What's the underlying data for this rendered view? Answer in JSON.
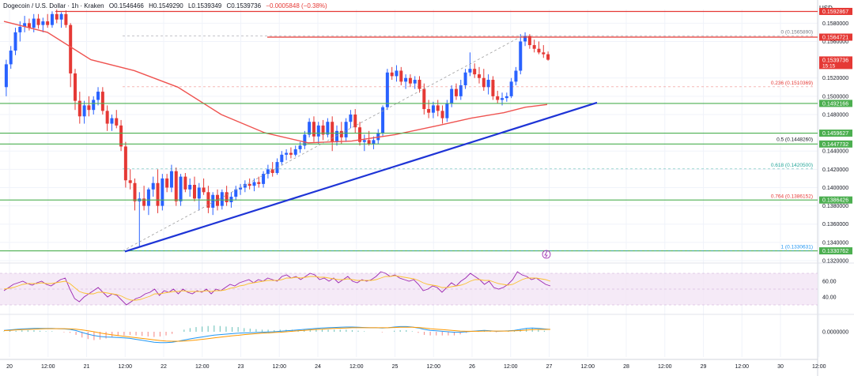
{
  "header": {
    "symbol": "Dogecoin / U.S. Dollar · 1h · Kraken",
    "open": "O0.1546466",
    "high": "H0.1549290",
    "low": "L0.1539349",
    "close": "C0.1539736",
    "change": "−0.0005848 (−0.38%)"
  },
  "currency_label": "USD",
  "colors": {
    "up": "#2962ff",
    "down": "#e53935",
    "ma": "#ef5350",
    "trendline": "#1e34d6",
    "support": "#4caf50",
    "resistance": "#e53935",
    "rsi_line": "#9c27b0",
    "rsi_ma": "#fbc02d",
    "rsi_band": "#f3e5f5",
    "macd": "#2196f3",
    "signal": "#ff9800",
    "fib_text": "#e53935"
  },
  "chart_data": {
    "type": "candlestick",
    "price_axis": {
      "min": 0.132,
      "max": 0.1595,
      "ticks": [
        "0.1580000",
        "0.1560000",
        "0.1520000",
        "0.1500000",
        "0.1480000",
        "0.1440000",
        "0.1420000",
        "0.1400000",
        "0.1380000",
        "0.1360000",
        "0.1340000",
        "0.1320000"
      ]
    },
    "time_axis": {
      "ticks": [
        "20",
        "12:00",
        "21",
        "12:00",
        "22",
        "12:00",
        "23",
        "12:00",
        "24",
        "12:00",
        "25",
        "12:00",
        "26",
        "12:00",
        "27",
        "12:00",
        "28",
        "12:00",
        "29",
        "12:00",
        "30",
        "12:00"
      ]
    },
    "candles": [
      [
        0.151,
        0.154,
        0.15,
        0.1535
      ],
      [
        0.1535,
        0.1555,
        0.153,
        0.155
      ],
      [
        0.155,
        0.1575,
        0.1545,
        0.157
      ],
      [
        0.157,
        0.1582,
        0.156,
        0.1576
      ],
      [
        0.1576,
        0.1588,
        0.157,
        0.158
      ],
      [
        0.158,
        0.1585,
        0.1572,
        0.1575
      ],
      [
        0.1575,
        0.159,
        0.157,
        0.1585
      ],
      [
        0.1585,
        0.159,
        0.1574,
        0.1578
      ],
      [
        0.1578,
        0.1586,
        0.157,
        0.1582
      ],
      [
        0.1582,
        0.159,
        0.1575,
        0.1578
      ],
      [
        0.1578,
        0.1593,
        0.1575,
        0.159
      ],
      [
        0.159,
        0.1595,
        0.158,
        0.1584
      ],
      [
        0.1584,
        0.1592,
        0.1575,
        0.159
      ],
      [
        0.159,
        0.1594,
        0.1575,
        0.1578
      ],
      [
        0.1578,
        0.158,
        0.151,
        0.1525
      ],
      [
        0.1525,
        0.153,
        0.1485,
        0.1495
      ],
      [
        0.1495,
        0.1505,
        0.147,
        0.1478
      ],
      [
        0.1478,
        0.1495,
        0.147,
        0.149
      ],
      [
        0.149,
        0.15,
        0.1478,
        0.1485
      ],
      [
        0.1485,
        0.15,
        0.148,
        0.1496
      ],
      [
        0.1496,
        0.151,
        0.149,
        0.1505
      ],
      [
        0.1505,
        0.151,
        0.148,
        0.1484
      ],
      [
        0.1484,
        0.149,
        0.1462,
        0.147
      ],
      [
        0.147,
        0.148,
        0.1462,
        0.1476
      ],
      [
        0.1476,
        0.1485,
        0.1465,
        0.1468
      ],
      [
        0.1468,
        0.1474,
        0.144,
        0.1445
      ],
      [
        0.1445,
        0.145,
        0.14,
        0.1408
      ],
      [
        0.1408,
        0.142,
        0.1398,
        0.1405
      ],
      [
        0.1405,
        0.141,
        0.1375,
        0.1385
      ],
      [
        0.1385,
        0.1395,
        0.1335,
        0.1388
      ],
      [
        0.1388,
        0.1402,
        0.1375,
        0.138
      ],
      [
        0.138,
        0.14,
        0.137,
        0.1398
      ],
      [
        0.1398,
        0.1412,
        0.139,
        0.1405
      ],
      [
        0.1405,
        0.142,
        0.1372,
        0.138
      ],
      [
        0.138,
        0.1415,
        0.1375,
        0.141
      ],
      [
        0.141,
        0.1415,
        0.1395,
        0.14
      ],
      [
        0.14,
        0.1425,
        0.1395,
        0.1418
      ],
      [
        0.1418,
        0.1422,
        0.138,
        0.1385
      ],
      [
        0.1385,
        0.1415,
        0.138,
        0.1412
      ],
      [
        0.1412,
        0.1416,
        0.1395,
        0.1398
      ],
      [
        0.1398,
        0.141,
        0.139,
        0.1403
      ],
      [
        0.1403,
        0.1412,
        0.1385,
        0.1388
      ],
      [
        0.1388,
        0.1405,
        0.1375,
        0.14
      ],
      [
        0.14,
        0.141,
        0.1392,
        0.1395
      ],
      [
        0.1395,
        0.1402,
        0.1372,
        0.1378
      ],
      [
        0.1378,
        0.1395,
        0.137,
        0.1392
      ],
      [
        0.1392,
        0.1398,
        0.1375,
        0.138
      ],
      [
        0.138,
        0.1398,
        0.1376,
        0.1395
      ],
      [
        0.1395,
        0.1402,
        0.138,
        0.1384
      ],
      [
        0.1384,
        0.1395,
        0.1378,
        0.139
      ],
      [
        0.139,
        0.1402,
        0.1386,
        0.1398
      ],
      [
        0.1398,
        0.1404,
        0.1392,
        0.14
      ],
      [
        0.14,
        0.1408,
        0.1395,
        0.1404
      ],
      [
        0.1404,
        0.141,
        0.1398,
        0.1402
      ],
      [
        0.1402,
        0.141,
        0.1396,
        0.1406
      ],
      [
        0.1406,
        0.1412,
        0.14,
        0.1404
      ],
      [
        0.1404,
        0.1418,
        0.14,
        0.1415
      ],
      [
        0.1415,
        0.1425,
        0.141,
        0.142
      ],
      [
        0.142,
        0.1428,
        0.1412,
        0.1416
      ],
      [
        0.1416,
        0.1432,
        0.1414,
        0.1428
      ],
      [
        0.1428,
        0.144,
        0.1425,
        0.1436
      ],
      [
        0.1436,
        0.1442,
        0.143,
        0.1438
      ],
      [
        0.1438,
        0.1444,
        0.1432,
        0.1436
      ],
      [
        0.1436,
        0.1446,
        0.1434,
        0.1442
      ],
      [
        0.1442,
        0.145,
        0.1438,
        0.1446
      ],
      [
        0.1446,
        0.1462,
        0.1442,
        0.1458
      ],
      [
        0.1458,
        0.1476,
        0.1455,
        0.1472
      ],
      [
        0.1472,
        0.1478,
        0.145,
        0.1456
      ],
      [
        0.1456,
        0.1472,
        0.1448,
        0.1468
      ],
      [
        0.1468,
        0.1474,
        0.1452,
        0.1458
      ],
      [
        0.1458,
        0.1476,
        0.1455,
        0.1472
      ],
      [
        0.1472,
        0.1478,
        0.144,
        0.145
      ],
      [
        0.145,
        0.1468,
        0.1446,
        0.1462
      ],
      [
        0.1462,
        0.1472,
        0.1448,
        0.1455
      ],
      [
        0.1455,
        0.1476,
        0.145,
        0.1472
      ],
      [
        0.1472,
        0.1485,
        0.1465,
        0.148
      ],
      [
        0.148,
        0.1486,
        0.146,
        0.1466
      ],
      [
        0.1466,
        0.1472,
        0.1446,
        0.145
      ],
      [
        0.145,
        0.1458,
        0.144,
        0.1452
      ],
      [
        0.1452,
        0.1462,
        0.1446,
        0.1448
      ],
      [
        0.1448,
        0.1456,
        0.1442,
        0.1452
      ],
      [
        0.1452,
        0.1464,
        0.1448,
        0.146
      ],
      [
        0.146,
        0.149,
        0.1456,
        0.1488
      ],
      [
        0.1488,
        0.153,
        0.1485,
        0.1526
      ],
      [
        0.1526,
        0.1532,
        0.1518,
        0.1522
      ],
      [
        0.1522,
        0.1534,
        0.1516,
        0.1528
      ],
      [
        0.1528,
        0.1532,
        0.1512,
        0.1516
      ],
      [
        0.1516,
        0.1524,
        0.1508,
        0.152
      ],
      [
        0.152,
        0.1524,
        0.151,
        0.1514
      ],
      [
        0.1514,
        0.1522,
        0.1508,
        0.1518
      ],
      [
        0.1518,
        0.1522,
        0.1504,
        0.1508
      ],
      [
        0.1508,
        0.1514,
        0.148,
        0.1486
      ],
      [
        0.1486,
        0.1496,
        0.1476,
        0.1482
      ],
      [
        0.1482,
        0.1494,
        0.1476,
        0.149
      ],
      [
        0.149,
        0.1496,
        0.1478,
        0.1484
      ],
      [
        0.1484,
        0.149,
        0.147,
        0.1476
      ],
      [
        0.1476,
        0.1496,
        0.1472,
        0.1492
      ],
      [
        0.1492,
        0.1512,
        0.1488,
        0.1508
      ],
      [
        0.1508,
        0.1514,
        0.1496,
        0.15
      ],
      [
        0.15,
        0.1518,
        0.1496,
        0.1512
      ],
      [
        0.1512,
        0.153,
        0.1508,
        0.1526
      ],
      [
        0.1526,
        0.1548,
        0.1522,
        0.153
      ],
      [
        0.153,
        0.1536,
        0.152,
        0.1524
      ],
      [
        0.1524,
        0.1532,
        0.1514,
        0.152
      ],
      [
        0.152,
        0.153,
        0.1506,
        0.151
      ],
      [
        0.151,
        0.1524,
        0.1502,
        0.1518
      ],
      [
        0.1518,
        0.1522,
        0.1496,
        0.15
      ],
      [
        0.15,
        0.1506,
        0.1492,
        0.1496
      ],
      [
        0.1496,
        0.1504,
        0.149,
        0.1498
      ],
      [
        0.1498,
        0.1504,
        0.1494,
        0.15
      ],
      [
        0.15,
        0.152,
        0.1498,
        0.1516
      ],
      [
        0.1516,
        0.1532,
        0.1512,
        0.1528
      ],
      [
        0.1528,
        0.1568,
        0.1524,
        0.156
      ],
      [
        0.156,
        0.157,
        0.1555,
        0.1566
      ],
      [
        0.1566,
        0.1568,
        0.1552,
        0.1556
      ],
      [
        0.1556,
        0.1562,
        0.1548,
        0.1552
      ],
      [
        0.1552,
        0.156,
        0.1546,
        0.1548
      ],
      [
        0.1548,
        0.1556,
        0.1542,
        0.1546
      ],
      [
        0.1546,
        0.1549,
        0.1539,
        0.154
      ]
    ],
    "moving_average": [
      [
        0,
        0.1582
      ],
      [
        0.08,
        0.157
      ],
      [
        0.16,
        0.154
      ],
      [
        0.24,
        0.1528
      ],
      [
        0.32,
        0.151
      ],
      [
        0.4,
        0.148
      ],
      [
        0.48,
        0.146
      ],
      [
        0.56,
        0.1449
      ],
      [
        0.64,
        0.1451
      ],
      [
        0.72,
        0.1458
      ],
      [
        0.8,
        0.1468
      ],
      [
        0.86,
        0.1476
      ],
      [
        0.92,
        0.1482
      ],
      [
        0.96,
        0.1488
      ],
      [
        1.0,
        0.1491
      ]
    ],
    "horizontal_levels": {
      "resistance": [
        0.1592867,
        0.1564721
      ],
      "support": [
        0.1492166,
        0.1459627,
        0.1447732,
        0.1386426,
        0.1330762
      ]
    },
    "fibonacci": [
      {
        "ratio_label": "0",
        "value_text": "0 (0.1565890)",
        "price": 0.156589
      },
      {
        "ratio_label": "0.236",
        "value_text": "0.236 (0.1510369)",
        "price": 0.1510369
      },
      {
        "ratio_label": "0.5",
        "value_text": "0.5 (0.1448260)",
        "price": 0.144826
      },
      {
        "ratio_label": "0.618",
        "value_text": "0.618 (0.1420500)",
        "price": 0.14205
      },
      {
        "ratio_label": "0.764",
        "value_text": "0.764 (0.1386152)",
        "price": 0.1386152
      },
      {
        "ratio_label": "1",
        "value_text": "1 (0.1330631)",
        "price": 0.1330631
      }
    ],
    "trendline": {
      "from_price": 0.133,
      "to_price": 0.1493
    },
    "price_labels": [
      {
        "text": "0.1592867",
        "price": 0.1592867,
        "color": "#e53935"
      },
      {
        "text": "0.1564721",
        "price": 0.1564721,
        "color": "#e53935"
      },
      {
        "text": "0.1539736",
        "price": 0.1539736,
        "color": "#e53935",
        "sub": "15:15"
      },
      {
        "text": "0.1492166",
        "price": 0.1492166,
        "color": "#4caf50"
      },
      {
        "text": "0.1459627",
        "price": 0.1459627,
        "color": "#4caf50"
      },
      {
        "text": "0.1447732",
        "price": 0.1447732,
        "color": "#4caf50"
      },
      {
        "text": "0.1386426",
        "price": 0.1386426,
        "color": "#4caf50"
      },
      {
        "text": "0.1330762",
        "price": 0.1330762,
        "color": "#4caf50"
      }
    ],
    "rsi": {
      "axis_ticks": [
        "60.00",
        "40.00"
      ],
      "band": [
        30,
        70
      ],
      "values": [
        48,
        52,
        56,
        58,
        60,
        57,
        55,
        58,
        60,
        56,
        54,
        58,
        62,
        64,
        50,
        38,
        34,
        40,
        44,
        48,
        52,
        46,
        40,
        44,
        42,
        36,
        30,
        34,
        38,
        40,
        44,
        46,
        50,
        42,
        48,
        46,
        50,
        44,
        50,
        46,
        44,
        48,
        46,
        50,
        44,
        50,
        48,
        52,
        56,
        54,
        58,
        60,
        62,
        58,
        62,
        60,
        64,
        62,
        60,
        66,
        68,
        64,
        66,
        62,
        66,
        70,
        68,
        62,
        64,
        60,
        64,
        58,
        62,
        66,
        60,
        58,
        62,
        60,
        62,
        66,
        72,
        70,
        66,
        68,
        64,
        62,
        60,
        62,
        56,
        48,
        50,
        54,
        52,
        46,
        52,
        58,
        54,
        60,
        64,
        70,
        66,
        62,
        56,
        60,
        52,
        50,
        52,
        56,
        62,
        72,
        68,
        66,
        62,
        64,
        60,
        56,
        54
      ],
      "ma_values": [
        50,
        51,
        52,
        54,
        56,
        57,
        57,
        57,
        58,
        57,
        57,
        58,
        59,
        60,
        57,
        52,
        47,
        45,
        44,
        44,
        46,
        46,
        45,
        44,
        43,
        41,
        38,
        36,
        36,
        37,
        39,
        41,
        44,
        44,
        45,
        46,
        47,
        47,
        48,
        47,
        47,
        47,
        47,
        48,
        47,
        48,
        48,
        49,
        51,
        52,
        54,
        55,
        57,
        58,
        59,
        60,
        61,
        61,
        61,
        62,
        64,
        64,
        65,
        64,
        65,
        66,
        66,
        65,
        65,
        64,
        63,
        62,
        62,
        63,
        62,
        61,
        61,
        61,
        61,
        62,
        64,
        66,
        66,
        67,
        66,
        65,
        64,
        63,
        61,
        58,
        56,
        55,
        54,
        52,
        52,
        53,
        54,
        55,
        57,
        60,
        62,
        62,
        61,
        61,
        59,
        57,
        56,
        55,
        56,
        59,
        62,
        64,
        64,
        64,
        63,
        62,
        60
      ],
      "marks": {
        "ohlc_interest": true
      }
    },
    "macd": {
      "axis_ticks": [
        "0.0000000"
      ],
      "macd_line": [
        0.0006,
        0.0008,
        0.001,
        0.0012,
        0.0013,
        0.0014,
        0.0014,
        0.0014,
        0.0014,
        0.0013,
        0.0012,
        0.001,
        0.0005,
        -0.0003,
        -0.001,
        -0.0016,
        -0.002,
        -0.0022,
        -0.0023,
        -0.0024,
        -0.0026,
        -0.0028,
        -0.0032,
        -0.0036,
        -0.004,
        -0.0044,
        -0.0046,
        -0.0046,
        -0.0044,
        -0.004,
        -0.0035,
        -0.003,
        -0.0026,
        -0.0022,
        -0.0018,
        -0.0014,
        -0.0012,
        -0.001,
        -0.0008,
        -0.0006,
        -0.0005,
        -0.0004,
        -0.0003,
        -0.0002,
        -0.0001,
        0.0,
        0.0002,
        0.0004,
        0.0006,
        0.0008,
        0.001,
        0.0012,
        0.0014,
        0.0016,
        0.0017,
        0.0018,
        0.0019,
        0.002,
        0.002,
        0.0019,
        0.0018,
        0.0017,
        0.0017,
        0.0016,
        0.0017,
        0.002,
        0.0022,
        0.0022,
        0.002,
        0.0016,
        0.001,
        0.0006,
        0.0004,
        0.0002,
        0.0,
        -0.0002,
        -0.0002,
        0.0,
        0.0002,
        0.0004,
        0.0006,
        0.0004,
        0.0002,
        0.0003,
        0.0004,
        0.0006,
        0.001,
        0.0014,
        0.0016,
        0.0014,
        0.0012,
        0.001
      ],
      "signal_line": [
        0.0005,
        0.0006,
        0.0008,
        0.0009,
        0.001,
        0.0011,
        0.0012,
        0.0013,
        0.0013,
        0.0013,
        0.0013,
        0.0012,
        0.0011,
        0.0008,
        0.0004,
        0.0,
        -0.0005,
        -0.0009,
        -0.0013,
        -0.0016,
        -0.0019,
        -0.0022,
        -0.0025,
        -0.0028,
        -0.0031,
        -0.0034,
        -0.0037,
        -0.0039,
        -0.004,
        -0.004,
        -0.0039,
        -0.0037,
        -0.0035,
        -0.0032,
        -0.0029,
        -0.0026,
        -0.0023,
        -0.002,
        -0.0017,
        -0.0015,
        -0.0012,
        -0.001,
        -0.0008,
        -0.0006,
        -0.0005,
        -0.0003,
        -0.0002,
        0.0,
        0.0002,
        0.0004,
        0.0006,
        0.0008,
        0.001,
        0.0011,
        0.0013,
        0.0014,
        0.0015,
        0.0016,
        0.0017,
        0.0017,
        0.0017,
        0.0017,
        0.0017,
        0.0017,
        0.0017,
        0.0018,
        0.0019,
        0.0019,
        0.0019,
        0.0018,
        0.0016,
        0.0013,
        0.0011,
        0.0009,
        0.0007,
        0.0005,
        0.0003,
        0.0002,
        0.0002,
        0.0002,
        0.0003,
        0.0003,
        0.0003,
        0.0003,
        0.0003,
        0.0004,
        0.0005,
        0.0007,
        0.0009,
        0.001,
        0.001,
        0.001
      ]
    }
  }
}
